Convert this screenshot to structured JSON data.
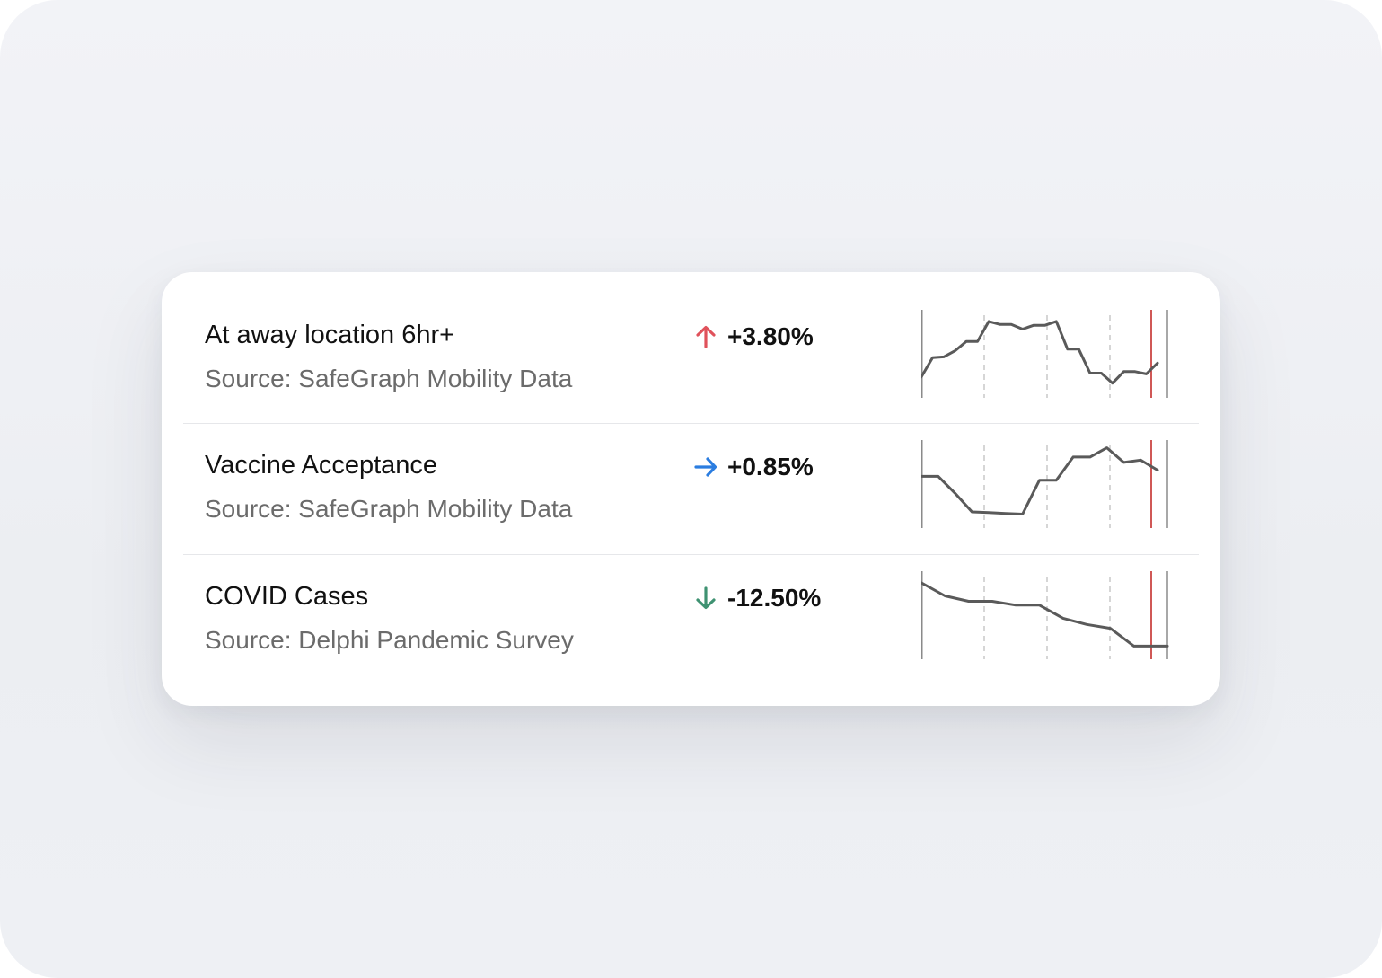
{
  "metrics": [
    {
      "title": "At away location 6hr+",
      "source": "Source: SafeGraph Mobility Data",
      "change": "+3.80%",
      "trend": "up",
      "arrow_color": "#e0525b",
      "arrow_icon": "arrow-up-icon",
      "sparkline": [
        20,
        45,
        46,
        54,
        66,
        66,
        92,
        88,
        88,
        82,
        87,
        87,
        92,
        56,
        56,
        25,
        25,
        12,
        27,
        27,
        24,
        38
      ]
    },
    {
      "title": "Vaccine Acceptance",
      "source": "Source: SafeGraph Mobility Data",
      "change": "+0.85%",
      "trend": "flat",
      "arrow_color": "#2b7de0",
      "arrow_icon": "arrow-right-icon",
      "sparkline": [
        60,
        60,
        38,
        14,
        13,
        12,
        11,
        55,
        55,
        85,
        85,
        97,
        78,
        81,
        68
      ]
    },
    {
      "title": "COVID Cases",
      "source": "Source: Delphi Pandemic Survey",
      "change": "-12.50%",
      "trend": "down",
      "arrow_color": "#3f9272",
      "arrow_icon": "arrow-down-icon",
      "sparkline": [
        92,
        75,
        68,
        68,
        63,
        63,
        46,
        38,
        33,
        10,
        10
      ]
    }
  ],
  "sparkline_style": {
    "line_color": "#5a5a5a",
    "axis_color": "#8a8a8a",
    "dashed_color": "#c8c8c8",
    "marker_color": "#c0211d"
  }
}
